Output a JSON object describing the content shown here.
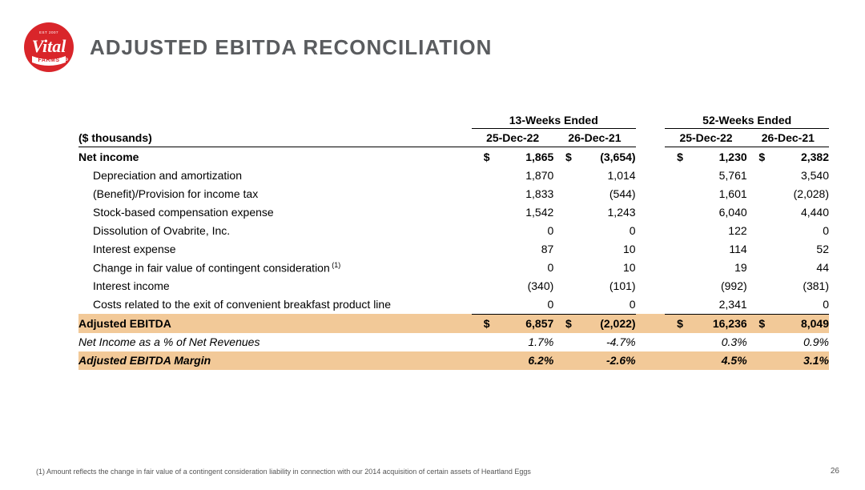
{
  "logo": {
    "bg_color": "#d9252a",
    "text_top": "EST 2007",
    "text_main": "Vital",
    "text_bottom": "FARMS",
    "text_color": "#ffffff"
  },
  "title": "ADJUSTED EBITDA RECONCILIATION",
  "periods": {
    "left": "13-Weeks Ended",
    "right": "52-Weeks Ended"
  },
  "columns": {
    "label": "($ thousands)",
    "c1": "25-Dec-22",
    "c2": "26-Dec-21",
    "c3": "25-Dec-22",
    "c4": "26-Dec-21"
  },
  "rows": [
    {
      "label": "Net income",
      "sym": "$",
      "v": [
        "1,865",
        "(3,654)",
        "1,230",
        "2,382"
      ],
      "bold": true,
      "noindent": true
    },
    {
      "label": "Depreciation and amortization",
      "v": [
        "1,870",
        "1,014",
        "5,761",
        "3,540"
      ]
    },
    {
      "label": "(Benefit)/Provision for income tax",
      "v": [
        "1,833",
        "(544)",
        "1,601",
        "(2,028)"
      ]
    },
    {
      "label": "Stock-based compensation expense",
      "v": [
        "1,542",
        "1,243",
        "6,040",
        "4,440"
      ]
    },
    {
      "label": "Dissolution of Ovabrite, Inc.",
      "v": [
        "0",
        "0",
        "122",
        "0"
      ]
    },
    {
      "label": "Interest expense",
      "v": [
        "87",
        "10",
        "114",
        "52"
      ]
    },
    {
      "label": "Change in fair value of contingent consideration",
      "sup": "(1)",
      "v": [
        "0",
        "10",
        "19",
        "44"
      ]
    },
    {
      "label": "Interest income",
      "v": [
        "(340)",
        "(101)",
        "(992)",
        "(381)"
      ]
    },
    {
      "label": "Costs related to the exit of convenient breakfast product line",
      "v": [
        "0",
        "0",
        "2,341",
        "0"
      ]
    },
    {
      "label": "Adjusted EBITDA",
      "sym": "$",
      "v": [
        "6,857",
        "(2,022)",
        "16,236",
        "8,049"
      ],
      "bold": true,
      "highlight": true,
      "noindent": true,
      "topborder": true
    },
    {
      "label": "Net Income as a % of Net Revenues",
      "v": [
        "1.7%",
        "-4.7%",
        "0.3%",
        "0.9%"
      ],
      "italic": true,
      "noindent": true
    },
    {
      "label": "Adjusted EBITDA Margin",
      "v": [
        "6.2%",
        "-2.6%",
        "4.5%",
        "3.1%"
      ],
      "bold": true,
      "italic": true,
      "highlight": true,
      "noindent": true
    }
  ],
  "footnote": "(1) Amount reflects the change in fair value of a contingent consideration liability in connection with our 2014 acquisition of certain assets of Heartland Eggs",
  "page_number": "26"
}
